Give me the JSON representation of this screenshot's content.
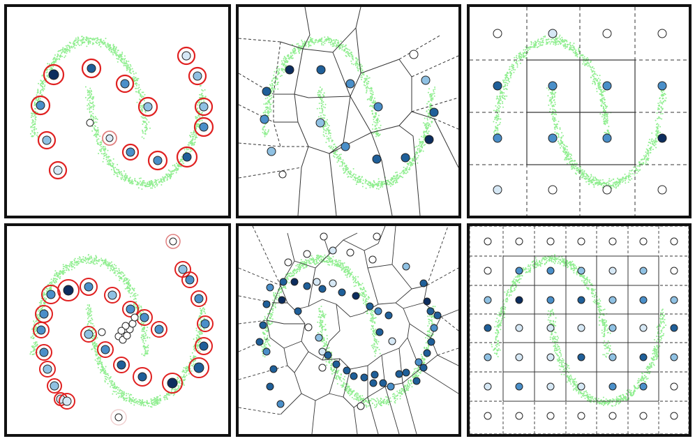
{
  "colors": {
    "background": "#ffffff",
    "frame": "#111111",
    "data_points": "#90ee90",
    "node_levels": [
      "#ffffff",
      "#d6e8f5",
      "#8fc1e3",
      "#4a8fc9",
      "#1f5f99",
      "#0c2d5e"
    ],
    "selection_ring": "#e02020",
    "cell_edges": "#333333"
  },
  "panels": [
    {
      "id": "top-left",
      "kind": "selected-nodes",
      "title": ""
    },
    {
      "id": "top-middle",
      "kind": "voronoi",
      "title": ""
    },
    {
      "id": "top-right",
      "kind": "grid",
      "title": ""
    },
    {
      "id": "bottom-left",
      "kind": "selected-nodes",
      "title": ""
    },
    {
      "id": "bottom-middle",
      "kind": "voronoi",
      "title": ""
    },
    {
      "id": "bottom-right",
      "kind": "grid",
      "title": ""
    }
  ]
}
